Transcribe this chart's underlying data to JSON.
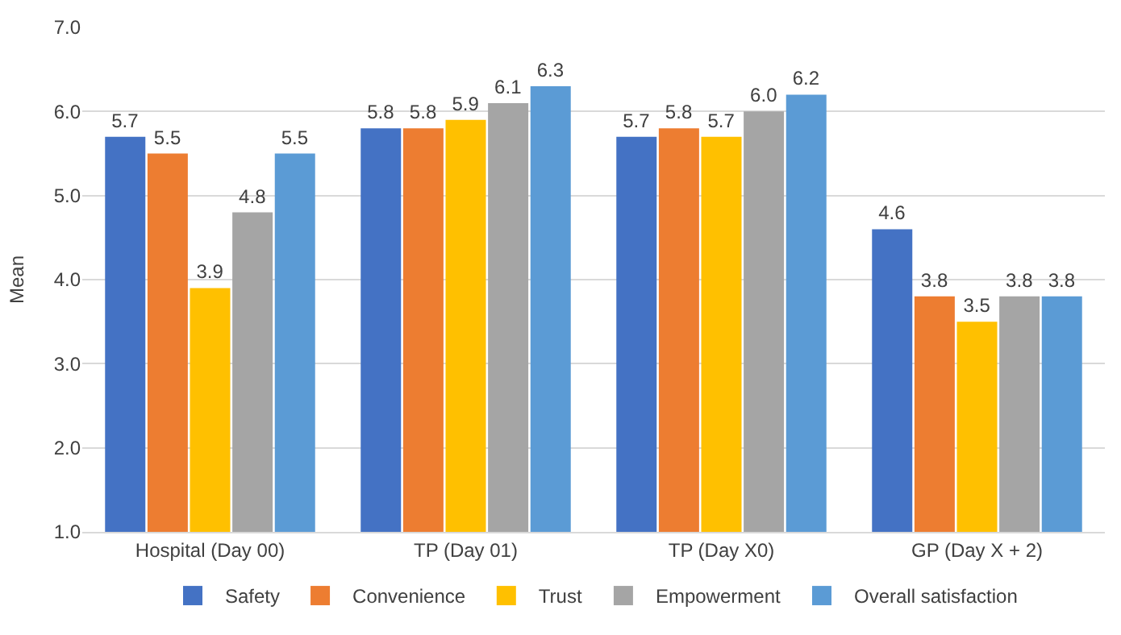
{
  "chart_data": {
    "type": "bar",
    "ylabel": "Mean",
    "categories": [
      "Hospital (Day 00)",
      "TP (Day 01)",
      "TP (Day X0)",
      "GP (Day X + 2)"
    ],
    "series": [
      {
        "name": "Safety",
        "color": "#4472c4",
        "values": [
          5.7,
          5.8,
          5.7,
          4.6
        ],
        "value_labels": [
          "5.7",
          "5.8",
          "5.7",
          "4.6"
        ]
      },
      {
        "name": "Convenience",
        "color": "#ed7d31",
        "values": [
          5.5,
          5.8,
          5.8,
          3.8
        ],
        "value_labels": [
          "5.5",
          "5.8",
          "5.8",
          "3.8"
        ]
      },
      {
        "name": "Trust",
        "color": "#ffc000",
        "values": [
          3.9,
          5.9,
          5.7,
          3.5
        ],
        "value_labels": [
          "3.9",
          "5.9",
          "5.7",
          "3.5"
        ]
      },
      {
        "name": "Empowerment",
        "color": "#a5a5a5",
        "values": [
          4.8,
          6.1,
          6.0,
          3.8
        ],
        "value_labels": [
          "4.8",
          "6.1",
          "6.0",
          "3.8"
        ]
      },
      {
        "name": "Overall satisfaction",
        "color": "#5b9bd5",
        "values": [
          5.5,
          6.3,
          6.2,
          3.8
        ],
        "value_labels": [
          "5.5",
          "6.3",
          "6.2",
          "3.8"
        ]
      }
    ],
    "ylim": [
      1,
      7
    ],
    "yticks": [
      {
        "value": 1,
        "label": "1.0"
      },
      {
        "value": 2,
        "label": "2.0"
      },
      {
        "value": 3,
        "label": "3.0"
      },
      {
        "value": 4,
        "label": "4.0"
      },
      {
        "value": 5,
        "label": "5.0"
      },
      {
        "value": 6,
        "label": "6.0"
      },
      {
        "value": 7,
        "label": "7.0"
      }
    ],
    "grid": "y",
    "legend": "bottom"
  }
}
